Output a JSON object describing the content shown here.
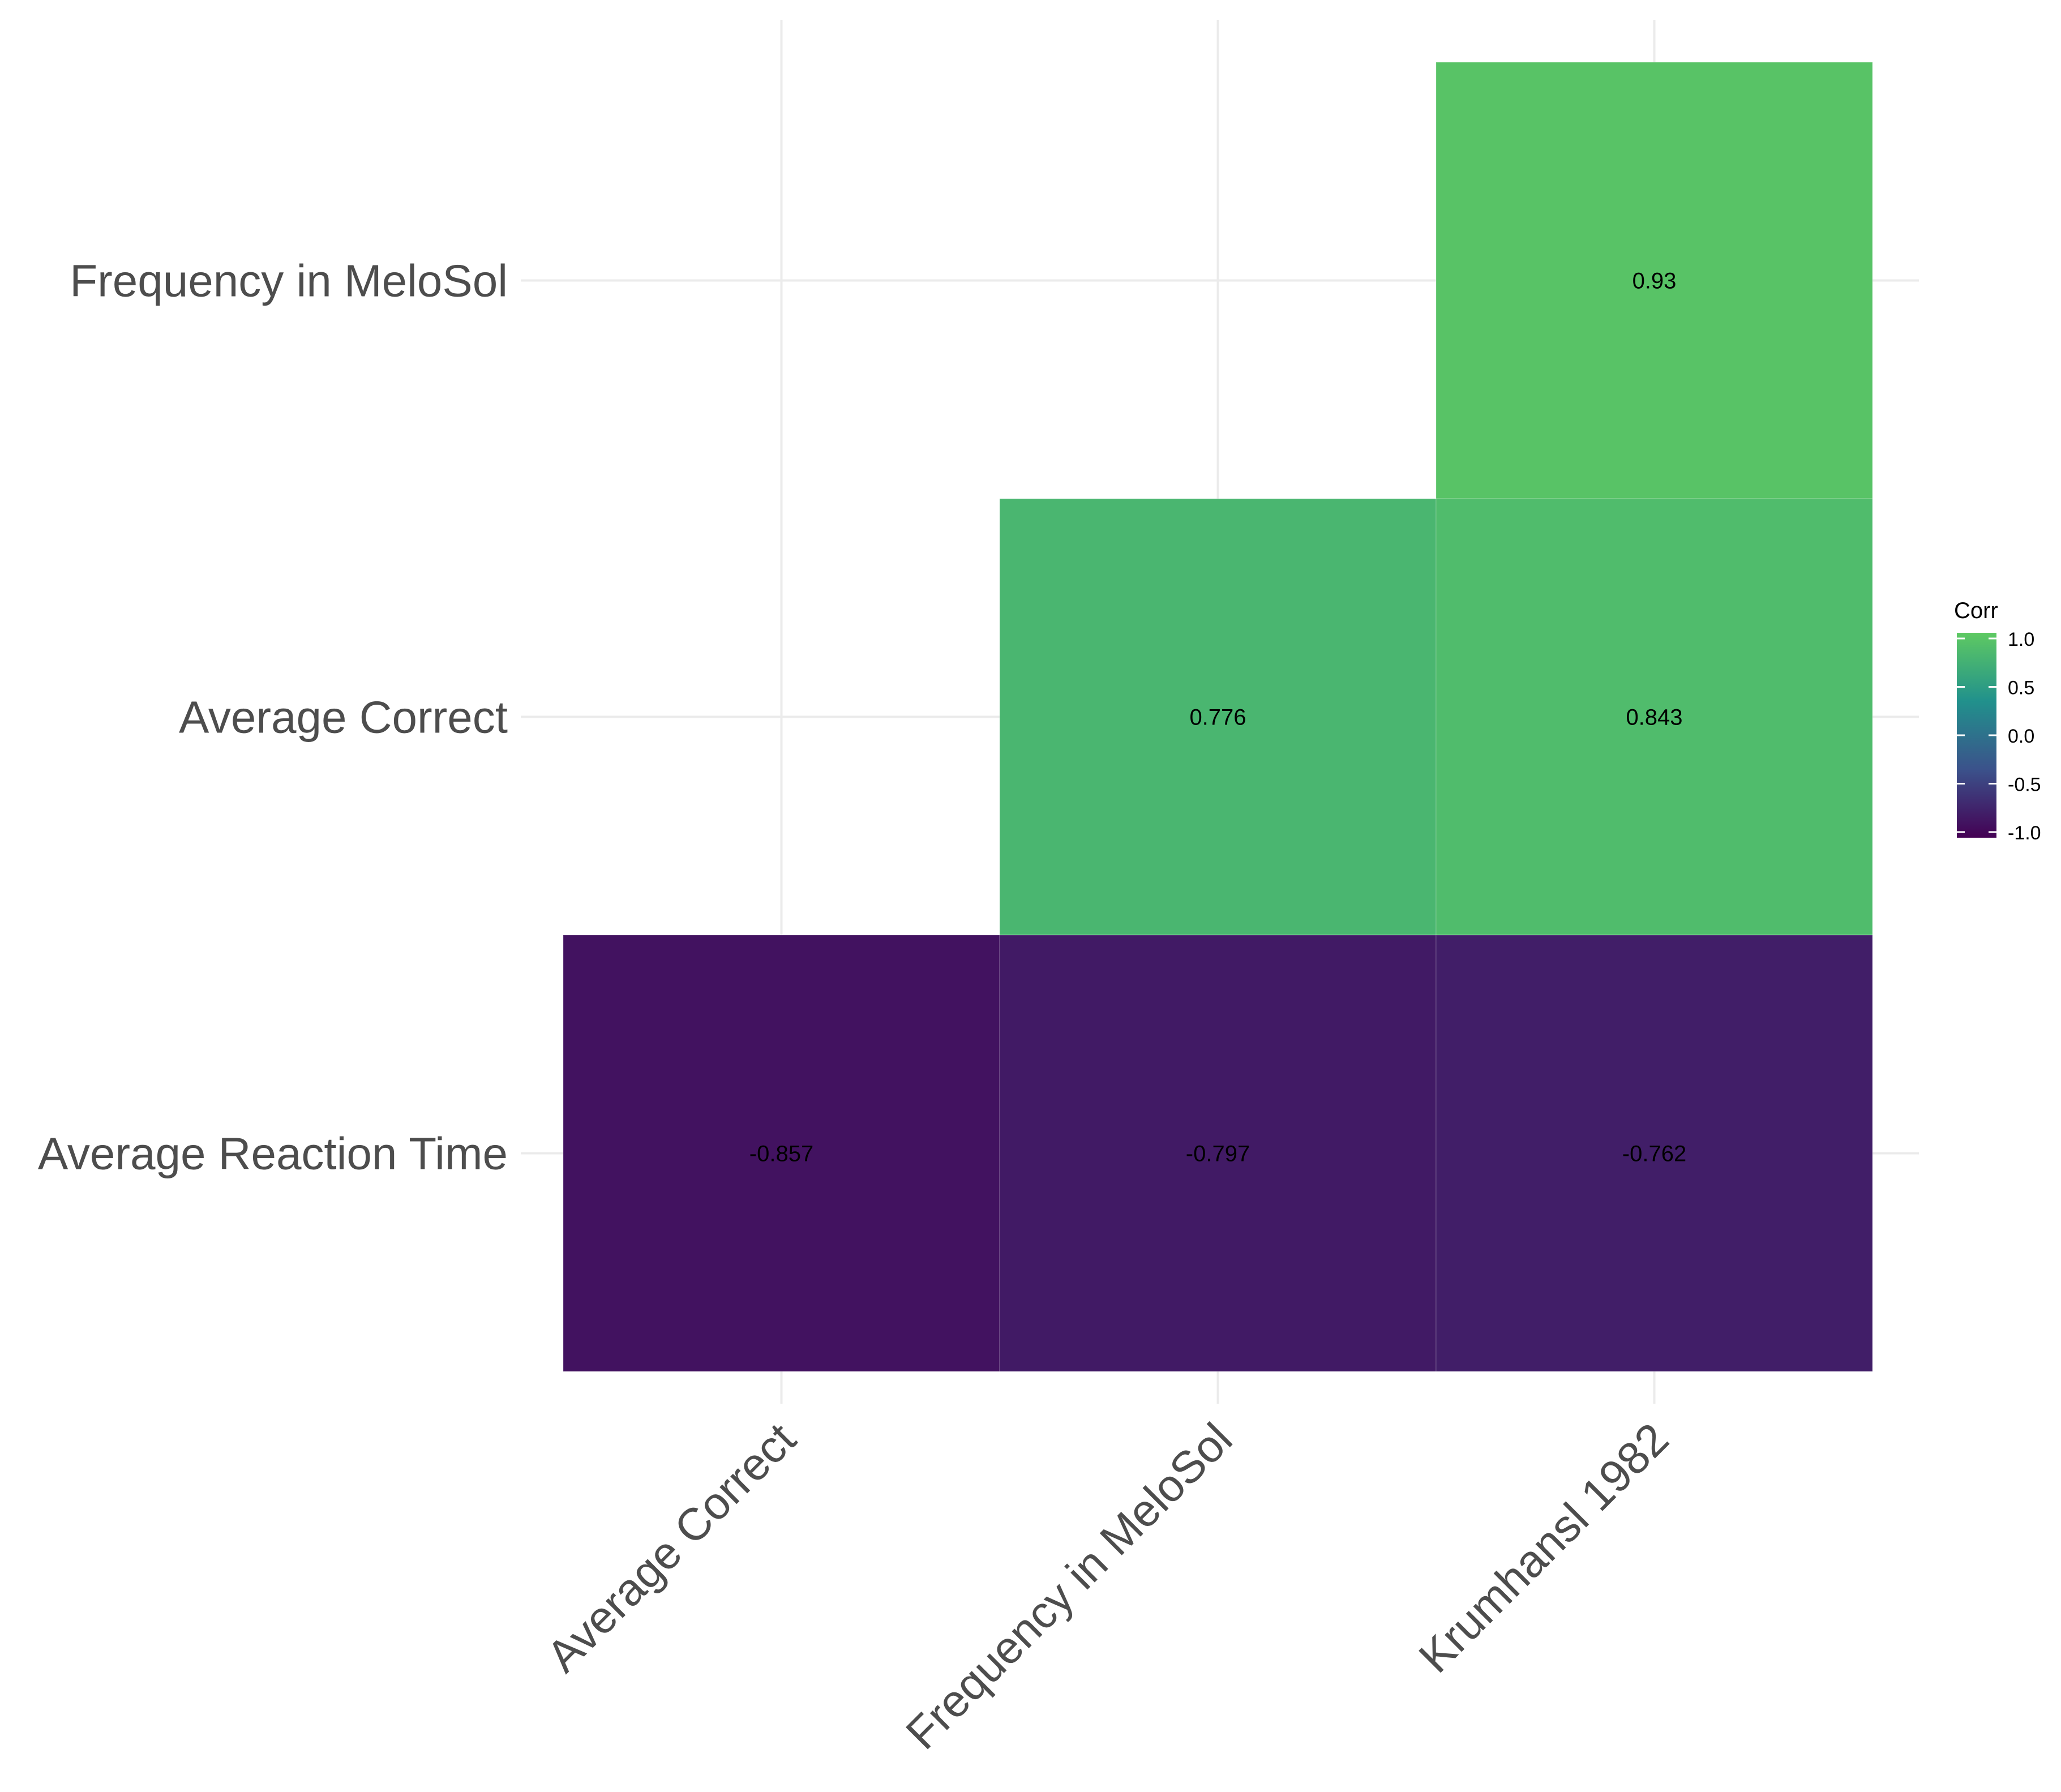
{
  "chart_data": {
    "type": "heatmap",
    "x_categories": [
      "Average Correct",
      "Frequency in MeloSol",
      "Krumhansl 1982"
    ],
    "y_categories": [
      "Average Reaction Time",
      "Average Correct",
      "Frequency in MeloSol"
    ],
    "cells": [
      {
        "x": "Krumhansl 1982",
        "y": "Frequency in MeloSol",
        "value": 0.93,
        "label": "0.93"
      },
      {
        "x": "Frequency in MeloSol",
        "y": "Average Correct",
        "value": 0.776,
        "label": "0.776"
      },
      {
        "x": "Krumhansl 1982",
        "y": "Average Correct",
        "value": 0.843,
        "label": "0.843"
      },
      {
        "x": "Average Correct",
        "y": "Average Reaction Time",
        "value": -0.857,
        "label": "-0.857"
      },
      {
        "x": "Frequency in MeloSol",
        "y": "Average Reaction Time",
        "value": -0.797,
        "label": "-0.797"
      },
      {
        "x": "Krumhansl 1982",
        "y": "Average Reaction Time",
        "value": -0.762,
        "label": "-0.762"
      }
    ],
    "legend": {
      "title": "Corr",
      "ticks": [
        "1.0",
        "0.5",
        "0.0",
        "-0.5",
        "-1.0"
      ],
      "tick_values": [
        1.0,
        0.5,
        0.0,
        -0.5,
        -1.0
      ],
      "range": [
        -1,
        1
      ],
      "placement": "right",
      "colors": [
        "#440154",
        "#3b528b",
        "#21918c",
        "#5ec962"
      ]
    },
    "grid": true,
    "x_label_rotation": -45
  }
}
